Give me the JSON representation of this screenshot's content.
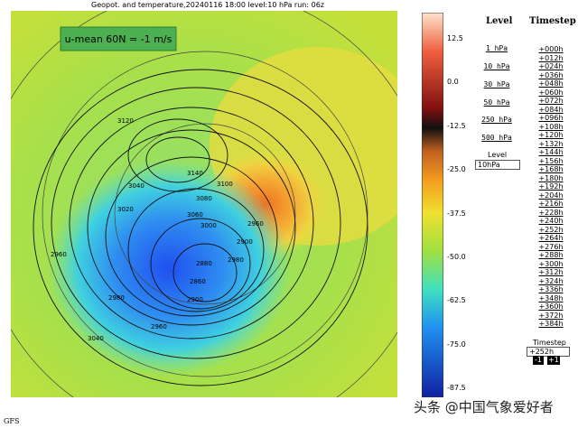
{
  "header": {
    "title": "Geopot. and temperature,20240116 18:00 level:10 hPa run: 06z"
  },
  "map": {
    "annotation": "u-mean 60N = -1 m/s",
    "contour_labels": [
      "3120",
      "3140",
      "3100",
      "3080",
      "3060",
      "3040",
      "3020",
      "3000",
      "2960",
      "2980",
      "2900",
      "2880",
      "2860",
      "2900",
      "2960",
      "3040",
      "2980",
      "2960"
    ]
  },
  "colorbar": {
    "ticks": [
      "12.5",
      "0.0",
      "-12.5",
      "-25.0",
      "-37.5",
      "-50.0",
      "-62.5",
      "-75.0",
      "-87.5"
    ]
  },
  "levels": {
    "title": "Level",
    "items": [
      "1 hPa",
      "10 hPa",
      "30 hPa",
      "50 hPa",
      "250 hPa",
      "500 hPa"
    ],
    "input_label": "Level",
    "input_value": "10hPa"
  },
  "timesteps": {
    "title": "Timestep",
    "items": [
      "+000h",
      "+012h",
      "+024h",
      "+036h",
      "+048h",
      "+060h",
      "+072h",
      "+084h",
      "+096h",
      "+108h",
      "+120h",
      "+132h",
      "+144h",
      "+156h",
      "+168h",
      "+180h",
      "+192h",
      "+204h",
      "+216h",
      "+228h",
      "+240h",
      "+252h",
      "+264h",
      "+276h",
      "+288h",
      "+300h",
      "+312h",
      "+324h",
      "+336h",
      "+348h",
      "+360h",
      "+372h",
      "+384h"
    ],
    "input_label": "Timestep",
    "input_value": "+252h",
    "prev": "-1",
    "next": "+1"
  },
  "footer": {
    "model": "GFS",
    "watermark": "头条 @中国气象爱好者"
  }
}
